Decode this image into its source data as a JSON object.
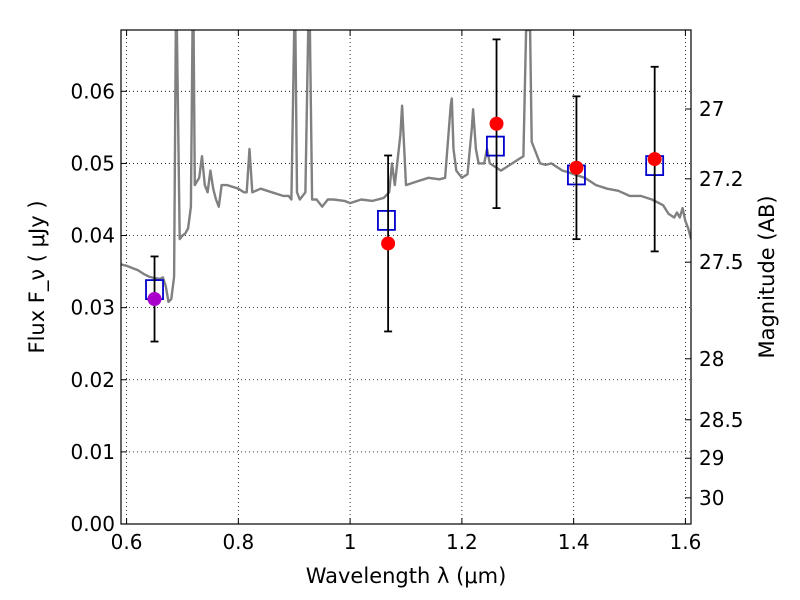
{
  "chart_data": {
    "type": "scatter",
    "title": "",
    "xlabel": "Wavelength  λ (μm)",
    "ylabel": "Flux  F_ν  ( μJy )",
    "y2label": "Magnitude (AB)",
    "xlim": [
      0.59,
      1.61
    ],
    "ylim": [
      0.0,
      0.0685
    ],
    "grid": true,
    "x_ticks": [
      {
        "value": 0.6,
        "label": "0.6"
      },
      {
        "value": 0.8,
        "label": "0.8"
      },
      {
        "value": 1.0,
        "label": "1"
      },
      {
        "value": 1.2,
        "label": "1.2"
      },
      {
        "value": 1.4,
        "label": "1.4"
      },
      {
        "value": 1.6,
        "label": "1.6"
      }
    ],
    "y_ticks": [
      {
        "value": 0.0,
        "label": "0.00"
      },
      {
        "value": 0.01,
        "label": "0.01"
      },
      {
        "value": 0.02,
        "label": "0.02"
      },
      {
        "value": 0.03,
        "label": "0.03"
      },
      {
        "value": 0.04,
        "label": "0.04"
      },
      {
        "value": 0.05,
        "label": "0.05"
      },
      {
        "value": 0.06,
        "label": "0.06"
      }
    ],
    "y2_ticks": [
      {
        "mag": 27.0,
        "label": "27"
      },
      {
        "mag": 27.2,
        "label": "27.2"
      },
      {
        "mag": 27.5,
        "label": "27.5"
      },
      {
        "mag": 28.0,
        "label": "28"
      },
      {
        "mag": 28.5,
        "label": "28.5"
      },
      {
        "mag": 29.0,
        "label": "29"
      },
      {
        "mag": 30.0,
        "label": "30"
      }
    ],
    "colors": {
      "spectrum": "#808080",
      "model_marker": "#0000cc",
      "observed_marker": "#ff0000",
      "blended_marker": "#aa00cc",
      "errorbar": "#000000",
      "grid": "#000000"
    },
    "series": [
      {
        "kind": "spectrum",
        "points": [
          [
            0.59,
            0.036
          ],
          [
            0.6,
            0.0358
          ],
          [
            0.61,
            0.0355
          ],
          [
            0.62,
            0.0352
          ],
          [
            0.63,
            0.0347
          ],
          [
            0.64,
            0.0343
          ],
          [
            0.65,
            0.0341
          ],
          [
            0.66,
            0.034
          ],
          [
            0.665,
            0.0342
          ],
          [
            0.67,
            0.033
          ],
          [
            0.675,
            0.0308
          ],
          [
            0.68,
            0.0312
          ],
          [
            0.685,
            0.0343
          ],
          [
            0.688,
            0.0685
          ],
          [
            0.69,
            0.0685
          ],
          [
            0.695,
            0.0395
          ],
          [
            0.7,
            0.04
          ],
          [
            0.705,
            0.0403
          ],
          [
            0.71,
            0.041
          ],
          [
            0.715,
            0.044
          ],
          [
            0.718,
            0.0685
          ],
          [
            0.72,
            0.0685
          ],
          [
            0.722,
            0.047
          ],
          [
            0.73,
            0.048
          ],
          [
            0.735,
            0.051
          ],
          [
            0.74,
            0.047
          ],
          [
            0.745,
            0.046
          ],
          [
            0.75,
            0.049
          ],
          [
            0.755,
            0.0465
          ],
          [
            0.76,
            0.045
          ],
          [
            0.765,
            0.044
          ],
          [
            0.77,
            0.047
          ],
          [
            0.78,
            0.047
          ],
          [
            0.8,
            0.0465
          ],
          [
            0.81,
            0.046
          ],
          [
            0.815,
            0.046
          ],
          [
            0.82,
            0.052
          ],
          [
            0.825,
            0.046
          ],
          [
            0.84,
            0.0465
          ],
          [
            0.86,
            0.046
          ],
          [
            0.88,
            0.0455
          ],
          [
            0.89,
            0.0455
          ],
          [
            0.895,
            0.045
          ],
          [
            0.9,
            0.0685
          ],
          [
            0.902,
            0.0685
          ],
          [
            0.905,
            0.046
          ],
          [
            0.91,
            0.045
          ],
          [
            0.92,
            0.046
          ],
          [
            0.925,
            0.0685
          ],
          [
            0.928,
            0.0685
          ],
          [
            0.932,
            0.045
          ],
          [
            0.94,
            0.045
          ],
          [
            0.95,
            0.044
          ],
          [
            0.96,
            0.045
          ],
          [
            0.97,
            0.045
          ],
          [
            0.99,
            0.0448
          ],
          [
            1.0,
            0.0445
          ],
          [
            1.02,
            0.045
          ],
          [
            1.04,
            0.0448
          ],
          [
            1.06,
            0.0452
          ],
          [
            1.07,
            0.046
          ],
          [
            1.075,
            0.05
          ],
          [
            1.08,
            0.047
          ],
          [
            1.09,
            0.054
          ],
          [
            1.093,
            0.058
          ],
          [
            1.1,
            0.047
          ],
          [
            1.12,
            0.0475
          ],
          [
            1.14,
            0.048
          ],
          [
            1.16,
            0.0478
          ],
          [
            1.17,
            0.048
          ],
          [
            1.175,
            0.053
          ],
          [
            1.18,
            0.058
          ],
          [
            1.182,
            0.059
          ],
          [
            1.185,
            0.052
          ],
          [
            1.19,
            0.049
          ],
          [
            1.2,
            0.048
          ],
          [
            1.21,
            0.0485
          ],
          [
            1.218,
            0.055
          ],
          [
            1.22,
            0.0575
          ],
          [
            1.225,
            0.052
          ],
          [
            1.23,
            0.05
          ],
          [
            1.24,
            0.05
          ],
          [
            1.245,
            0.052
          ],
          [
            1.25,
            0.05
          ],
          [
            1.26,
            0.0495
          ],
          [
            1.27,
            0.049
          ],
          [
            1.28,
            0.0495
          ],
          [
            1.29,
            0.05
          ],
          [
            1.3,
            0.0505
          ],
          [
            1.31,
            0.051
          ],
          [
            1.315,
            0.0685
          ],
          [
            1.322,
            0.0685
          ],
          [
            1.325,
            0.053
          ],
          [
            1.33,
            0.052
          ],
          [
            1.34,
            0.05
          ],
          [
            1.35,
            0.0498
          ],
          [
            1.36,
            0.05
          ],
          [
            1.37,
            0.0495
          ],
          [
            1.38,
            0.049
          ],
          [
            1.39,
            0.0488
          ],
          [
            1.4,
            0.0485
          ],
          [
            1.42,
            0.048
          ],
          [
            1.44,
            0.047
          ],
          [
            1.46,
            0.0465
          ],
          [
            1.48,
            0.0462
          ],
          [
            1.5,
            0.0455
          ],
          [
            1.52,
            0.0455
          ],
          [
            1.54,
            0.045
          ],
          [
            1.56,
            0.0442
          ],
          [
            1.57,
            0.043
          ],
          [
            1.58,
            0.0425
          ],
          [
            1.585,
            0.0432
          ],
          [
            1.59,
            0.0425
          ],
          [
            1.595,
            0.0438
          ],
          [
            1.6,
            0.042
          ],
          [
            1.605,
            0.041
          ],
          [
            1.61,
            0.0395
          ]
        ]
      },
      {
        "kind": "model",
        "marker": "open-square",
        "points": [
          [
            0.65,
            0.0325
          ],
          [
            1.065,
            0.0421
          ],
          [
            1.26,
            0.0524
          ],
          [
            1.405,
            0.0484
          ],
          [
            1.545,
            0.0497
          ]
        ]
      },
      {
        "kind": "observed",
        "marker": "filled-circle",
        "points": [
          {
            "x": 0.65,
            "y": 0.0312,
            "err": 0.0059,
            "color_key": "blended_marker"
          },
          {
            "x": 1.068,
            "y": 0.0389,
            "err": 0.0122,
            "color_key": "observed_marker"
          },
          {
            "x": 1.262,
            "y": 0.0555,
            "err": 0.0117,
            "color_key": "observed_marker"
          },
          {
            "x": 1.405,
            "y": 0.0494,
            "err": 0.0099,
            "color_key": "observed_marker"
          },
          {
            "x": 1.545,
            "y": 0.0506,
            "err": 0.0128,
            "color_key": "observed_marker"
          }
        ]
      }
    ]
  }
}
